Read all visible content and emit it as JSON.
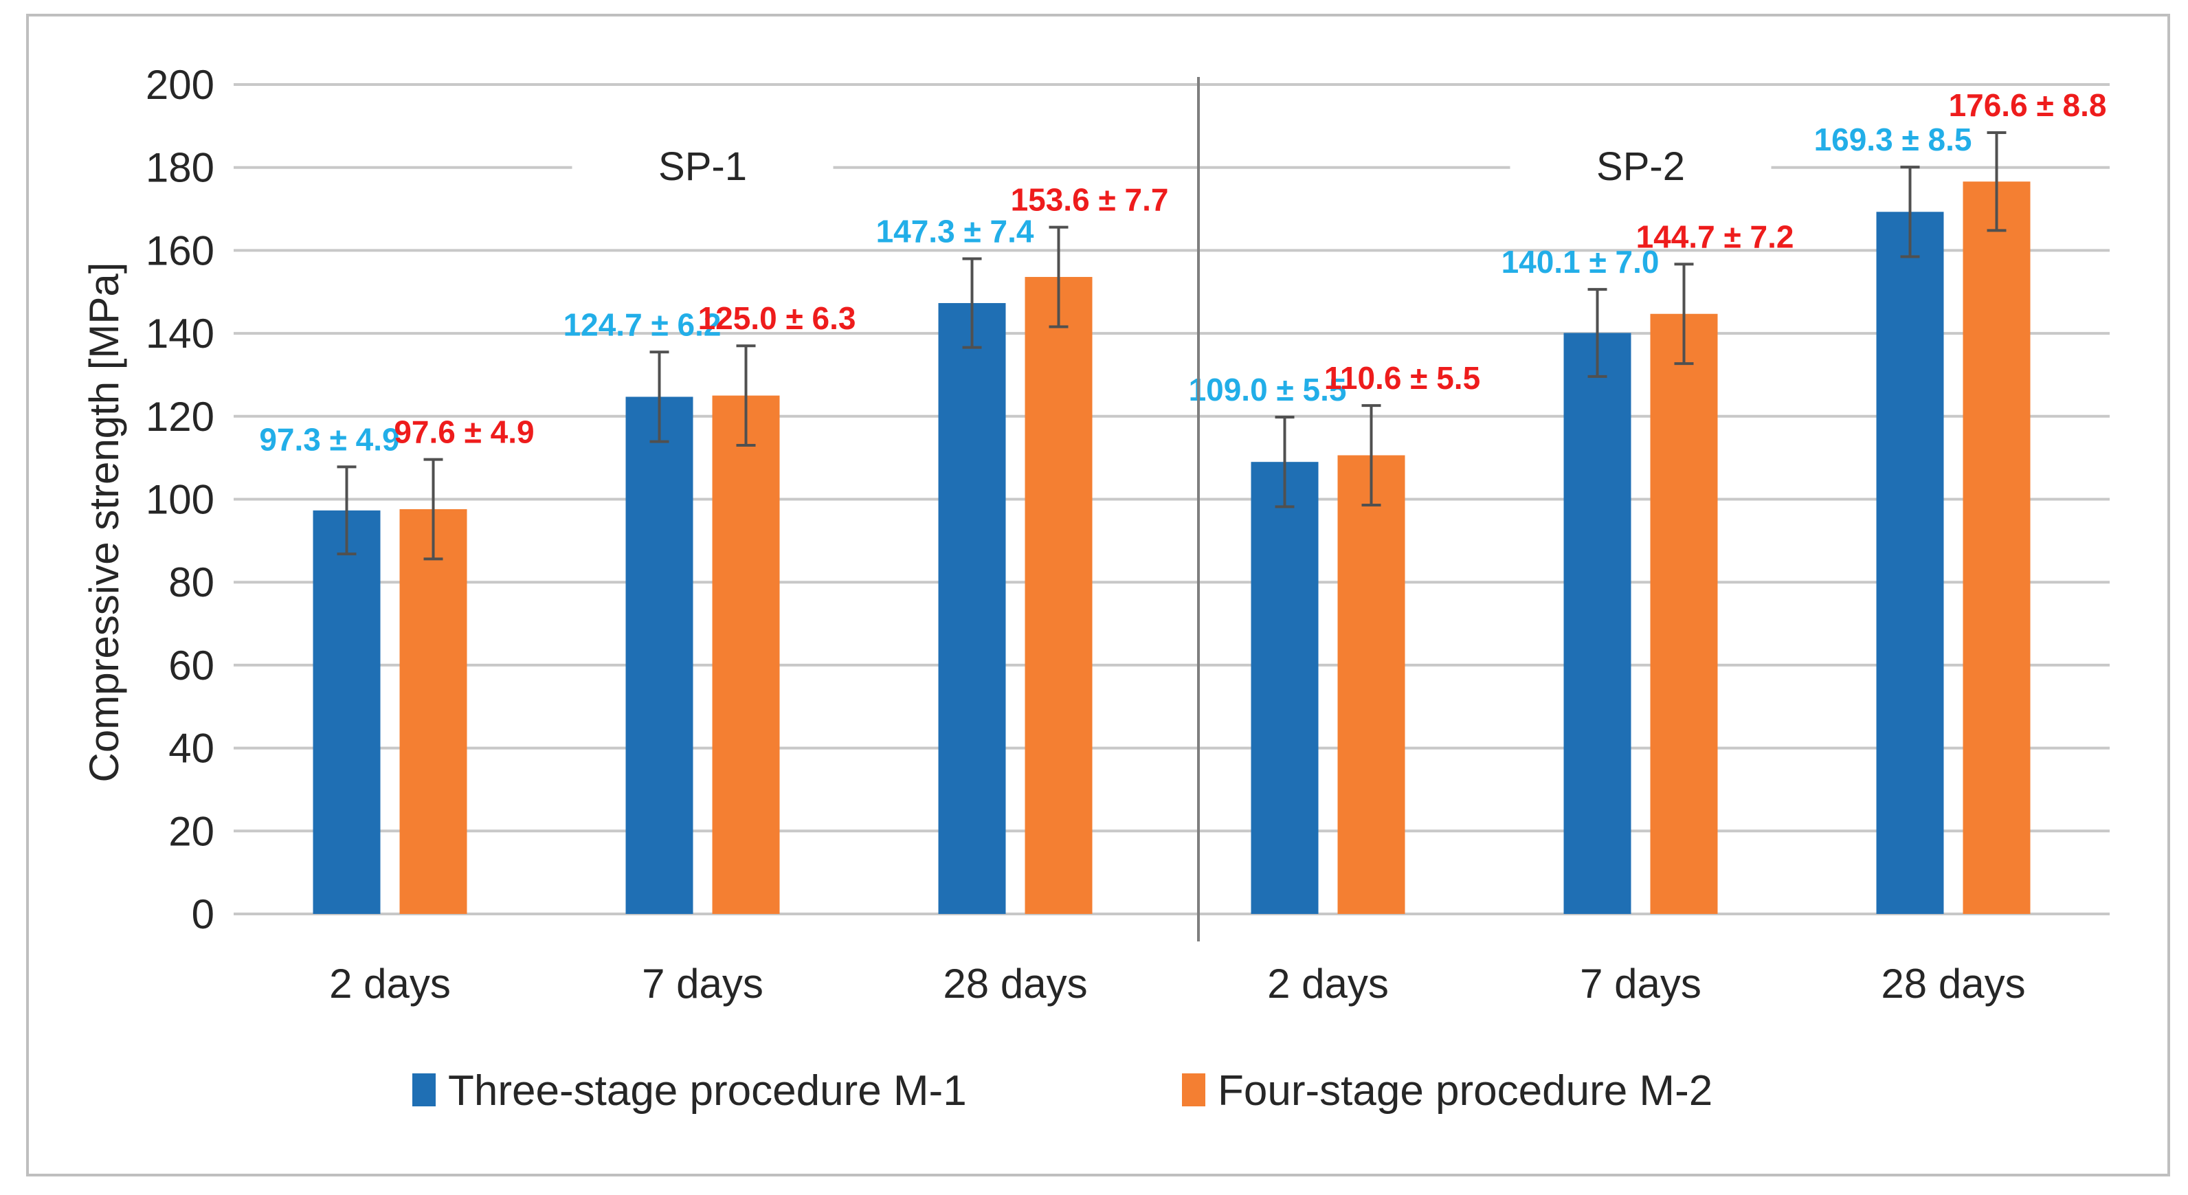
{
  "colors": {
    "series1": "#1f6fb4",
    "series2": "#f47f32",
    "label1": "#22aee8",
    "label2": "#ee1c1c",
    "grid": "#c8c8c8",
    "errorbar": "#505050",
    "divider": "#7f7f7f"
  },
  "chart_data": {
    "type": "bar",
    "title": "",
    "xlabel": "",
    "ylabel": "Compressive strength [MPa]",
    "ylim": [
      0,
      200
    ],
    "yticks": [
      0,
      20,
      40,
      60,
      80,
      100,
      120,
      140,
      160,
      180,
      200
    ],
    "grid": true,
    "legend_position": "bottom",
    "groups": [
      "SP-1",
      "SP-2"
    ],
    "categories": [
      "2 days",
      "7 days",
      "28 days",
      "2 days",
      "7 days",
      "28 days"
    ],
    "series": [
      {
        "name": "Three-stage procedure M-1",
        "values": [
          97.3,
          124.7,
          147.3,
          109.0,
          140.1,
          169.3
        ],
        "errors": [
          10.5,
          10.8,
          10.7,
          10.8,
          10.5,
          10.8
        ],
        "labels": [
          "97.3 ± 4.9",
          "124.7 ± 6.2",
          "147.3 ± 7.4",
          "109.0 ± 5.5",
          "140.1 ± 7.0",
          "169.3 ± 8.5"
        ]
      },
      {
        "name": "Four-stage procedure M-2",
        "values": [
          97.6,
          125.0,
          153.6,
          110.6,
          144.7,
          176.6
        ],
        "errors": [
          12.0,
          12.0,
          12.0,
          12.0,
          12.0,
          11.8
        ],
        "labels": [
          "97.6 ± 4.9",
          "125.0 ± 6.3",
          "153.6 ± 7.7",
          "110.6 ± 5.5",
          "144.7 ± 7.2",
          "176.6 ± 8.8"
        ]
      }
    ]
  }
}
